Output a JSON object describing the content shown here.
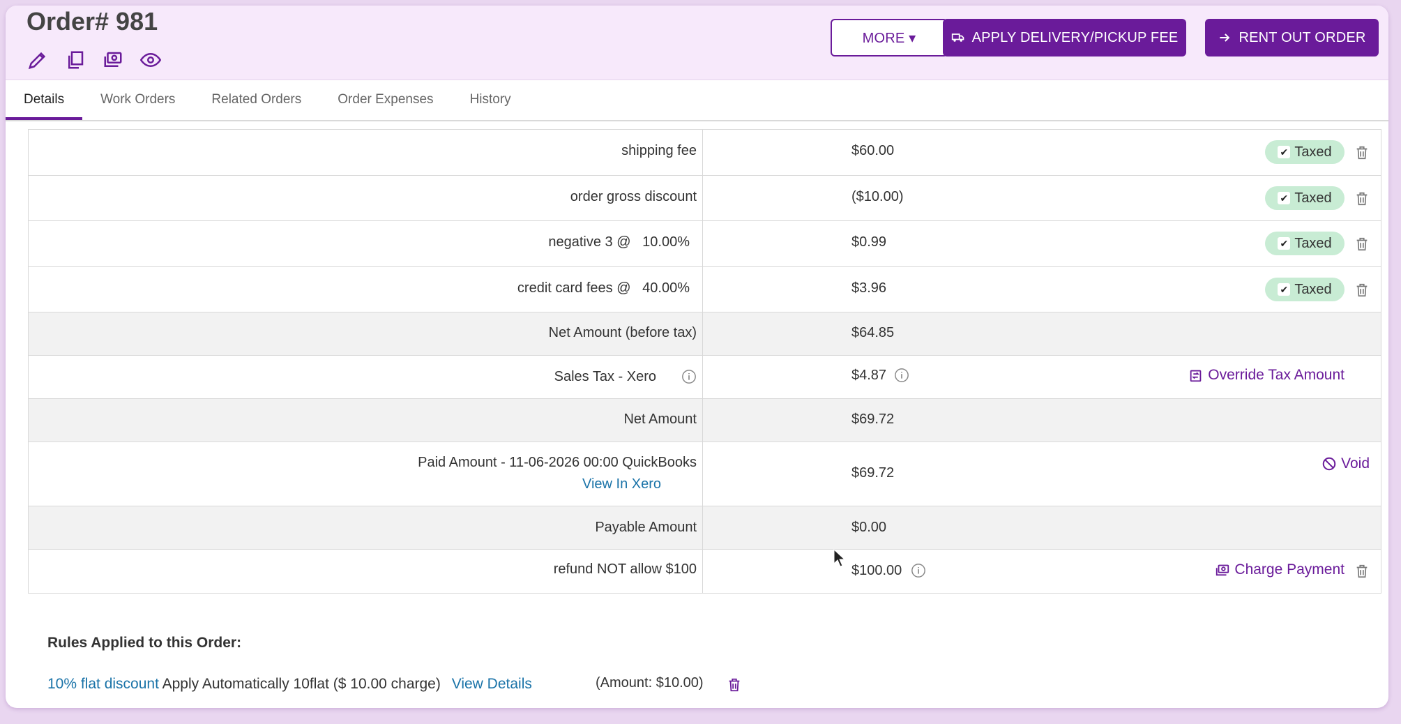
{
  "header": {
    "title": "Order# 981",
    "more_label": "MORE ▾",
    "apply_fee_label": "APPLY DELIVERY/PICKUP FEE",
    "rent_out_label": "RENT OUT ORDER",
    "icons": [
      "pencil-icon",
      "copy-icon",
      "money-icon",
      "eye-icon"
    ]
  },
  "tabs": [
    {
      "label": "Details",
      "active": true
    },
    {
      "label": "Work Orders"
    },
    {
      "label": "Related Orders"
    },
    {
      "label": "Order Expenses"
    },
    {
      "label": "History"
    }
  ],
  "line_items": [
    {
      "label": "shipping fee",
      "amount": "$60.00",
      "badge": "Taxed"
    },
    {
      "label": "order gross discount",
      "amount": "($10.00)",
      "badge": "Taxed"
    },
    {
      "label": "negative 3 @   10.00%",
      "amount": "$0.99",
      "badge": "Taxed"
    },
    {
      "label": "credit card fees @   40.00%",
      "amount": "$3.96",
      "badge": "Taxed"
    }
  ],
  "summary": {
    "net_before_tax_label": "Net Amount (before tax)",
    "net_before_tax_amount": "$64.85",
    "sales_tax_label": "Sales Tax - Xero",
    "sales_tax_amount": "$4.87",
    "override_tax_label": "Override Tax Amount",
    "net_amount_label": "Net Amount",
    "net_amount": "$69.72",
    "paid_label": "Paid Amount - 11-06-2026 00:00 QuickBooks",
    "paid_link": "View In Xero",
    "paid_amount": "$69.72",
    "void_label": "Void",
    "payable_label": "Payable Amount",
    "payable_amount": "$0.00",
    "refund_label": "refund NOT allow $100",
    "refund_amount": "$100.00",
    "charge_payment_label": "Charge Payment"
  },
  "rules": {
    "title": "Rules Applied to this Order:",
    "rule_name": "10% flat discount",
    "rule_desc": "Apply Automatically 10flat ($ 10.00 charge)",
    "view_details": "View Details",
    "amount": "(Amount: $10.00)"
  },
  "colors": {
    "accent": "#6a1b9a",
    "header_bg": "#f7e9fb",
    "badge_bg": "#c8ecd4",
    "link": "#1a73a8"
  }
}
